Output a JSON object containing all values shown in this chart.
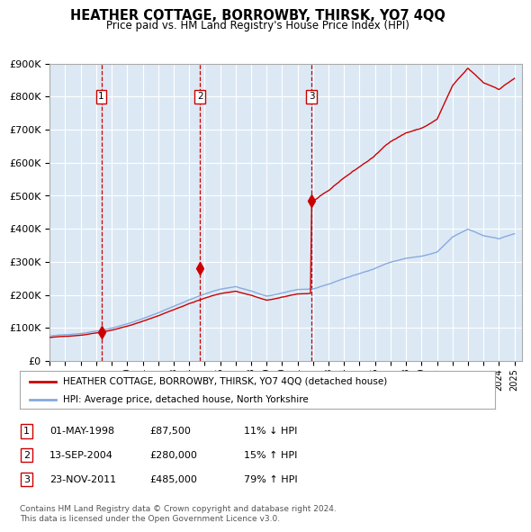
{
  "title": "HEATHER COTTAGE, BORROWBY, THIRSK, YO7 4QQ",
  "subtitle": "Price paid vs. HM Land Registry's House Price Index (HPI)",
  "plot_bg_color": "#dce9f5",
  "grid_color": "#ffffff",
  "ylim": [
    0,
    900000
  ],
  "yticks": [
    0,
    100000,
    200000,
    300000,
    400000,
    500000,
    600000,
    700000,
    800000,
    900000
  ],
  "ytick_labels": [
    "£0",
    "£100K",
    "£200K",
    "£300K",
    "£400K",
    "£500K",
    "£600K",
    "£700K",
    "£800K",
    "£900K"
  ],
  "xlim_start": 1995.0,
  "xlim_end": 2025.5,
  "xtick_years": [
    1995,
    1996,
    1997,
    1998,
    1999,
    2000,
    2001,
    2002,
    2003,
    2004,
    2005,
    2006,
    2007,
    2008,
    2009,
    2010,
    2011,
    2012,
    2013,
    2014,
    2015,
    2016,
    2017,
    2018,
    2019,
    2020,
    2021,
    2022,
    2023,
    2024,
    2025
  ],
  "sale_dates": [
    1998.33,
    2004.71,
    2011.9
  ],
  "sale_prices": [
    87500,
    280000,
    485000
  ],
  "sale_labels": [
    "1",
    "2",
    "3"
  ],
  "sale_color": "#cc0000",
  "hpi_line_color": "#88aadd",
  "red_line_color": "#cc0000",
  "dashed_line_color": "#cc0000",
  "legend_line1": "HEATHER COTTAGE, BORROWBY, THIRSK, YO7 4QQ (detached house)",
  "legend_line2": "HPI: Average price, detached house, North Yorkshire",
  "table_rows": [
    {
      "num": "1",
      "date": "01-MAY-1998",
      "price": "£87,500",
      "hpi": "11% ↓ HPI"
    },
    {
      "num": "2",
      "date": "13-SEP-2004",
      "price": "£280,000",
      "hpi": "15% ↑ HPI"
    },
    {
      "num": "3",
      "date": "23-NOV-2011",
      "price": "£485,000",
      "hpi": "79% ↑ HPI"
    }
  ],
  "footnote1": "Contains HM Land Registry data © Crown copyright and database right 2024.",
  "footnote2": "This data is licensed under the Open Government Licence v3.0.",
  "sale1_price": 87500,
  "sale2_price": 280000,
  "sale3_price": 485000,
  "sale1_year": 1998.33,
  "sale2_year": 2004.71,
  "sale3_year": 2011.9
}
